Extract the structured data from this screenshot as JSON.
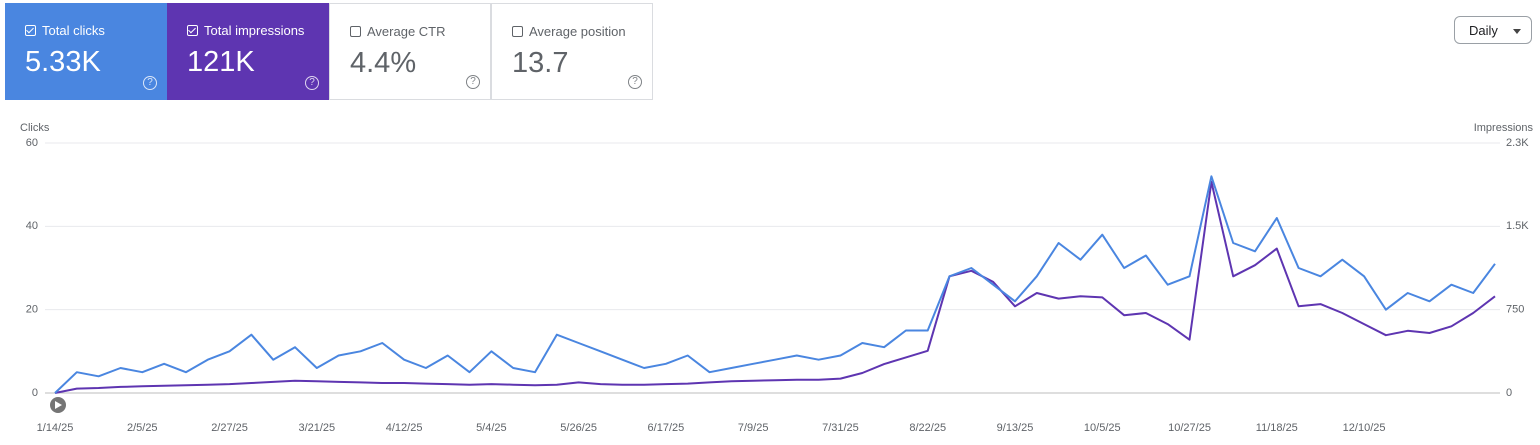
{
  "metrics": [
    {
      "label": "Total clicks",
      "value": "5.33K",
      "checked": true
    },
    {
      "label": "Total impressions",
      "value": "121K",
      "checked": true
    },
    {
      "label": "Average CTR",
      "value": "4.4%",
      "checked": false
    },
    {
      "label": "Average position",
      "value": "13.7",
      "checked": false
    }
  ],
  "dropdown": "Daily",
  "chart_data": {
    "type": "line",
    "y_label": "Clicks",
    "y2_label": "Impressions",
    "categories": [
      "1/14/25",
      null,
      null,
      null,
      "2/5/25",
      null,
      null,
      null,
      "2/27/25",
      null,
      null,
      null,
      "3/21/25",
      null,
      null,
      null,
      "4/12/25",
      null,
      null,
      null,
      "5/4/25",
      null,
      null,
      null,
      "5/26/25",
      null,
      null,
      null,
      "6/17/25",
      null,
      null,
      null,
      "7/9/25",
      null,
      null,
      null,
      "7/31/25",
      null,
      null,
      null,
      "8/22/25",
      null,
      null,
      null,
      "9/13/25",
      null,
      null,
      null,
      "10/5/25",
      null,
      null,
      null,
      "10/27/25",
      null,
      null,
      null,
      "11/18/25",
      null,
      null,
      null,
      "12/10/25",
      null,
      null,
      null,
      null,
      null,
      null
    ],
    "series": [
      {
        "name": "Clicks",
        "color": "#4a86e0",
        "values": [
          0,
          5,
          4,
          6,
          5,
          7,
          5,
          8,
          10,
          14,
          8,
          11,
          6,
          9,
          10,
          12,
          8,
          6,
          9,
          5,
          10,
          6,
          5,
          14,
          12,
          10,
          8,
          6,
          7,
          9,
          5,
          6,
          7,
          8,
          9,
          8,
          9,
          12,
          11,
          15,
          15,
          28,
          30,
          26,
          22,
          28,
          36,
          32,
          38,
          30,
          33,
          26,
          28,
          52,
          36,
          34,
          42,
          30,
          28,
          32,
          28,
          20,
          24,
          22,
          26,
          24,
          31
        ]
      },
      {
        "name": "Impressions",
        "color": "#5e35b1",
        "axis": "y2",
        "values": [
          0,
          40,
          45,
          55,
          60,
          65,
          70,
          75,
          80,
          90,
          100,
          110,
          105,
          100,
          95,
          90,
          90,
          85,
          80,
          75,
          80,
          75,
          70,
          75,
          95,
          80,
          75,
          75,
          80,
          85,
          95,
          105,
          110,
          115,
          120,
          120,
          130,
          180,
          260,
          320,
          380,
          1050,
          1100,
          1000,
          780,
          900,
          850,
          870,
          860,
          700,
          720,
          620,
          480,
          1900,
          1050,
          1150,
          1300,
          780,
          800,
          720,
          620,
          520,
          560,
          540,
          600,
          720,
          870
        ]
      }
    ],
    "ylim": [
      0,
      60
    ],
    "yticks": [
      0,
      20,
      40,
      60
    ],
    "y2lim": [
      0,
      2250
    ],
    "y2ticks": [
      0,
      750,
      {
        "value": 1500,
        "label": "1.5K"
      },
      {
        "value": 2250,
        "label": "2.3K"
      }
    ],
    "grid": true
  }
}
